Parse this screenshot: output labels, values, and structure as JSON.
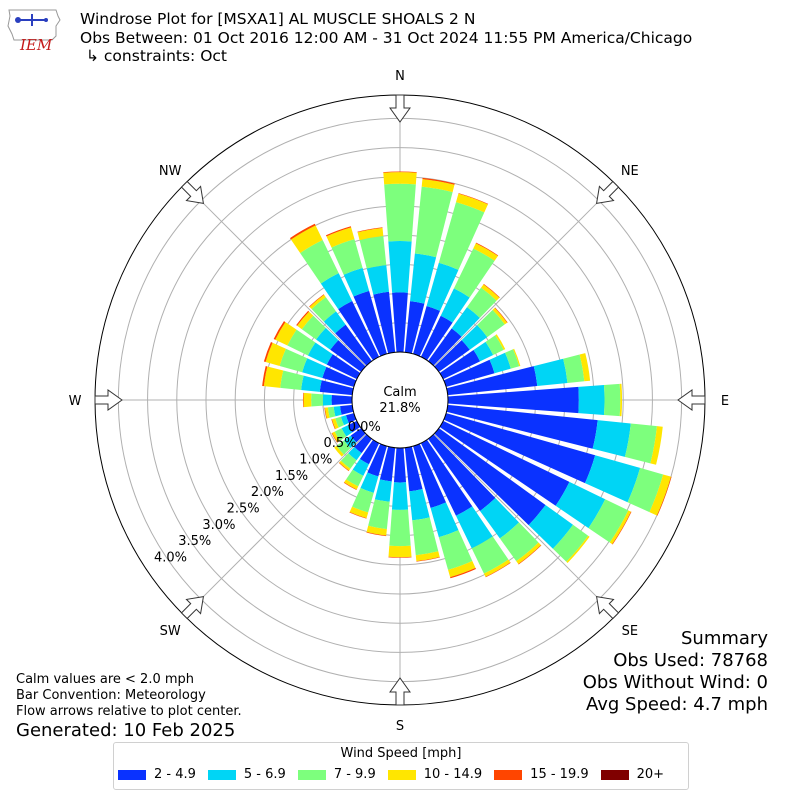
{
  "header": {
    "logo_text": "IEM",
    "title_line1": "Windrose Plot for [MSXA1] AL MUSCLE SHOALS 2 N",
    "title_line2": "Obs Between: 01 Oct 2016 12:00 AM - 31 Oct 2024 11:55 PM America/Chicago",
    "title_line3": "↳ constraints: Oct"
  },
  "summary": {
    "heading": "Summary",
    "obs_used": "Obs Used: 78768",
    "obs_without_wind": "Obs Without Wind: 0",
    "avg_speed": "Avg Speed: 4.7 mph"
  },
  "notes": {
    "calm_note": "Calm values are < 2.0 mph",
    "bar_convention": "Bar Convention: Meteorology",
    "flow_arrows": "Flow arrows relative to plot center.",
    "generated": "Generated: 10 Feb 2025"
  },
  "legend": {
    "title": "Wind Speed [mph]",
    "items": [
      {
        "label": "2 - 4.9",
        "color": "#0a32ff"
      },
      {
        "label": "5 - 6.9",
        "color": "#00d5f5"
      },
      {
        "label": "7 - 9.9",
        "color": "#7dff7d"
      },
      {
        "label": "10 - 14.9",
        "color": "#ffe600"
      },
      {
        "label": "15 - 19.9",
        "color": "#ff4500"
      },
      {
        "label": "20+",
        "color": "#800000"
      }
    ]
  },
  "chart_data": {
    "type": "windrose",
    "calm_label": "Calm",
    "calm_percent": "21.8%",
    "radial_ticks": [
      "0.0%",
      "0.5%",
      "1.0%",
      "1.5%",
      "2.0%",
      "2.5%",
      "3.0%",
      "3.5%",
      "4.0%"
    ],
    "radial_tick_values": [
      0,
      0.5,
      1.0,
      1.5,
      2.0,
      2.5,
      3.0,
      3.5,
      4.0
    ],
    "rmax": 4.4,
    "compass_labels": [
      "N",
      "NE",
      "E",
      "SE",
      "S",
      "SW",
      "W",
      "NW"
    ],
    "speed_bins": [
      "2 - 4.9",
      "5 - 6.9",
      "7 - 9.9",
      "10 - 14.9",
      "15 - 19.9",
      "20+"
    ],
    "grid": true,
    "directions_deg": [
      0,
      10,
      20,
      30,
      40,
      50,
      60,
      70,
      80,
      90,
      100,
      110,
      120,
      130,
      140,
      150,
      160,
      170,
      180,
      190,
      200,
      210,
      220,
      230,
      240,
      250,
      260,
      270,
      280,
      290,
      300,
      310,
      320,
      330,
      340,
      350
    ],
    "cumulative_percent": [
      [
        1.02,
        1.9,
        2.88,
        3.08,
        3.09,
        3.09
      ],
      [
        0.88,
        1.7,
        2.85,
        2.98,
        3.0,
        3.0
      ],
      [
        0.85,
        1.62,
        2.7,
        2.85,
        2.86,
        2.86
      ],
      [
        0.78,
        1.3,
        2.06,
        2.16,
        2.17,
        2.17
      ],
      [
        0.69,
        1.14,
        1.55,
        1.62,
        1.63,
        1.63
      ],
      [
        0.65,
        1.02,
        1.39,
        1.44,
        1.45,
        1.45
      ],
      [
        0.7,
        0.95,
        1.15,
        1.18,
        1.18,
        1.18
      ],
      [
        0.86,
        1.15,
        1.3,
        1.32,
        1.32,
        1.32
      ],
      [
        1.54,
        2.06,
        2.35,
        2.45,
        2.45,
        2.45
      ],
      [
        2.24,
        2.68,
        2.95,
        2.98,
        2.98,
        2.98
      ],
      [
        2.58,
        3.15,
        3.6,
        3.7,
        3.7,
        3.7
      ],
      [
        2.65,
        3.45,
        3.86,
        4.0,
        4.01,
        4.01
      ],
      [
        2.4,
        3.08,
        3.52,
        3.57,
        3.58,
        3.58
      ],
      [
        2.25,
        2.83,
        3.15,
        3.18,
        3.18,
        3.18
      ],
      [
        1.52,
        2.1,
        2.58,
        2.64,
        2.65,
        2.65
      ],
      [
        1.38,
        2.0,
        2.48,
        2.54,
        2.55,
        2.55
      ],
      [
        1.1,
        1.62,
        2.2,
        2.33,
        2.35,
        2.35
      ],
      [
        0.75,
        1.25,
        1.85,
        1.95,
        1.96,
        1.96
      ],
      [
        0.59,
        1.06,
        1.68,
        1.87,
        1.88,
        1.88
      ],
      [
        0.58,
        0.93,
        1.4,
        1.51,
        1.52,
        1.52
      ],
      [
        0.54,
        0.83,
        1.18,
        1.28,
        1.29,
        1.29
      ],
      [
        0.4,
        0.62,
        0.82,
        0.88,
        0.89,
        0.89
      ],
      [
        0.3,
        0.45,
        0.63,
        0.67,
        0.68,
        0.68
      ],
      [
        0.22,
        0.36,
        0.52,
        0.57,
        0.57,
        0.57
      ],
      [
        0.17,
        0.29,
        0.42,
        0.47,
        0.48,
        0.48
      ],
      [
        0.14,
        0.23,
        0.33,
        0.39,
        0.4,
        0.4
      ],
      [
        0.21,
        0.32,
        0.42,
        0.47,
        0.48,
        0.48
      ],
      [
        0.35,
        0.5,
        0.7,
        0.83,
        0.84,
        0.84
      ],
      [
        0.56,
        0.88,
        1.24,
        1.52,
        1.55,
        1.55
      ],
      [
        0.56,
        0.92,
        1.32,
        1.57,
        1.6,
        1.6
      ],
      [
        0.57,
        0.93,
        1.32,
        1.55,
        1.58,
        1.58
      ],
      [
        0.65,
        0.95,
        1.25,
        1.35,
        1.37,
        1.37
      ],
      [
        0.77,
        1.05,
        1.35,
        1.4,
        1.41,
        1.41
      ],
      [
        1.06,
        1.59,
        2.22,
        2.5,
        2.53,
        2.53
      ],
      [
        1.12,
        1.53,
        2.04,
        2.25,
        2.27,
        2.27
      ],
      [
        1.04,
        1.5,
        2.0,
        2.14,
        2.15,
        2.15
      ]
    ]
  }
}
